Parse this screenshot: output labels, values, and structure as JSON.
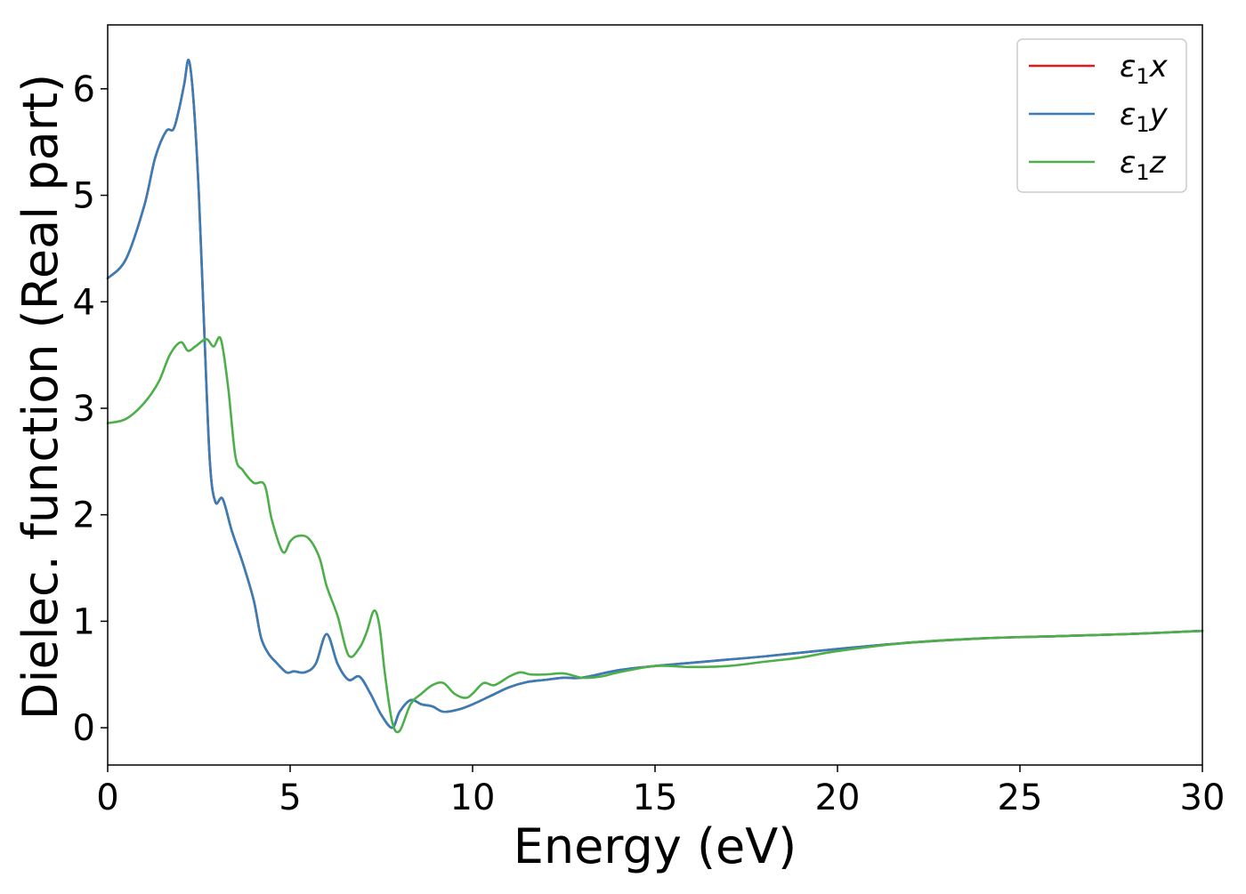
{
  "chart_data": {
    "type": "line",
    "title": "",
    "xlabel": "Energy (eV)",
    "ylabel": "Dielec. function (Real part)",
    "xlim": [
      0,
      30
    ],
    "ylim": [
      -0.35,
      6.6
    ],
    "xticks": [
      0,
      5,
      10,
      15,
      20,
      25,
      30
    ],
    "yticks": [
      0,
      1,
      2,
      3,
      4,
      5,
      6
    ],
    "xtick_labels": [
      "0",
      "5",
      "10",
      "15",
      "20",
      "25",
      "30"
    ],
    "ytick_labels": [
      "0",
      "1",
      "2",
      "3",
      "4",
      "5",
      "6"
    ],
    "grid": false,
    "legend_position": "top-right",
    "series": [
      {
        "name": "ε₁x",
        "legend": {
          "base": "ε",
          "sub": "1",
          "suffix": "x"
        },
        "color": "#e41a1c",
        "x": [
          0,
          0.5,
          1.0,
          1.3,
          1.6,
          1.8,
          1.95,
          2.1,
          2.22,
          2.35,
          2.5,
          2.65,
          2.8,
          2.95,
          3.15,
          3.4,
          3.7,
          4.0,
          4.2,
          4.4,
          4.6,
          4.9,
          5.1,
          5.4,
          5.7,
          6.0,
          6.3,
          6.6,
          6.9,
          7.2,
          7.5,
          7.8,
          8.0,
          8.3,
          8.6,
          8.9,
          9.2,
          9.6,
          10.0,
          10.5,
          11.0,
          11.5,
          12.0,
          12.5,
          13.0,
          14.0,
          15.0,
          16.0,
          17.0,
          18.0,
          20.0,
          22.0,
          24.0,
          26.0,
          28.0,
          30.0
        ],
        "y": [
          4.22,
          4.4,
          4.9,
          5.35,
          5.6,
          5.62,
          5.8,
          6.05,
          6.27,
          5.9,
          5.0,
          3.7,
          2.5,
          2.12,
          2.15,
          1.85,
          1.55,
          1.2,
          0.85,
          0.7,
          0.62,
          0.52,
          0.53,
          0.52,
          0.6,
          0.88,
          0.6,
          0.45,
          0.48,
          0.32,
          0.12,
          0.0,
          0.15,
          0.26,
          0.22,
          0.2,
          0.15,
          0.17,
          0.22,
          0.3,
          0.38,
          0.43,
          0.45,
          0.47,
          0.47,
          0.54,
          0.58,
          0.61,
          0.64,
          0.67,
          0.74,
          0.8,
          0.84,
          0.86,
          0.88,
          0.91
        ]
      },
      {
        "name": "ε₁y",
        "legend": {
          "base": "ε",
          "sub": "1",
          "suffix": "y"
        },
        "color": "#377eb8",
        "x": [
          0,
          0.5,
          1.0,
          1.3,
          1.6,
          1.8,
          1.95,
          2.1,
          2.22,
          2.35,
          2.5,
          2.65,
          2.8,
          2.95,
          3.15,
          3.4,
          3.7,
          4.0,
          4.2,
          4.4,
          4.6,
          4.9,
          5.1,
          5.4,
          5.7,
          6.0,
          6.3,
          6.6,
          6.9,
          7.2,
          7.5,
          7.8,
          8.0,
          8.3,
          8.6,
          8.9,
          9.2,
          9.6,
          10.0,
          10.5,
          11.0,
          11.5,
          12.0,
          12.5,
          13.0,
          14.0,
          15.0,
          16.0,
          17.0,
          18.0,
          20.0,
          22.0,
          24.0,
          26.0,
          28.0,
          30.0
        ],
        "y": [
          4.22,
          4.4,
          4.9,
          5.35,
          5.6,
          5.62,
          5.8,
          6.05,
          6.27,
          5.9,
          5.0,
          3.7,
          2.5,
          2.12,
          2.15,
          1.85,
          1.55,
          1.2,
          0.85,
          0.7,
          0.62,
          0.52,
          0.53,
          0.52,
          0.6,
          0.88,
          0.6,
          0.45,
          0.48,
          0.32,
          0.12,
          0.0,
          0.15,
          0.26,
          0.22,
          0.2,
          0.15,
          0.17,
          0.22,
          0.3,
          0.38,
          0.43,
          0.45,
          0.47,
          0.47,
          0.54,
          0.58,
          0.61,
          0.64,
          0.67,
          0.74,
          0.8,
          0.84,
          0.86,
          0.88,
          0.91
        ]
      },
      {
        "name": "ε₁z",
        "legend": {
          "base": "ε",
          "sub": "1",
          "suffix": "z"
        },
        "color": "#4daf4a",
        "x": [
          0,
          0.5,
          1.0,
          1.4,
          1.7,
          2.0,
          2.2,
          2.4,
          2.7,
          2.9,
          3.1,
          3.3,
          3.5,
          3.7,
          4.0,
          4.3,
          4.5,
          4.8,
          5.0,
          5.2,
          5.5,
          5.8,
          6.0,
          6.3,
          6.6,
          6.9,
          7.1,
          7.3,
          7.45,
          7.6,
          7.8,
          8.0,
          8.3,
          8.6,
          8.9,
          9.2,
          9.5,
          9.8,
          10.0,
          10.3,
          10.6,
          11.0,
          11.3,
          11.6,
          12.0,
          12.5,
          13.0,
          13.5,
          14.0,
          15.0,
          16.0,
          17.0,
          18.0,
          19.0,
          20.0,
          22.0,
          24.0,
          26.0,
          28.0,
          30.0
        ],
        "y": [
          2.86,
          2.9,
          3.05,
          3.25,
          3.5,
          3.62,
          3.54,
          3.58,
          3.65,
          3.58,
          3.65,
          3.2,
          2.55,
          2.42,
          2.3,
          2.28,
          1.95,
          1.65,
          1.75,
          1.8,
          1.78,
          1.6,
          1.33,
          1.05,
          0.68,
          0.75,
          0.9,
          1.1,
          0.95,
          0.5,
          0.05,
          -0.03,
          0.22,
          0.32,
          0.4,
          0.42,
          0.32,
          0.28,
          0.32,
          0.42,
          0.4,
          0.48,
          0.52,
          0.5,
          0.5,
          0.51,
          0.47,
          0.48,
          0.52,
          0.58,
          0.57,
          0.58,
          0.62,
          0.66,
          0.72,
          0.8,
          0.84,
          0.86,
          0.88,
          0.91
        ]
      }
    ]
  }
}
